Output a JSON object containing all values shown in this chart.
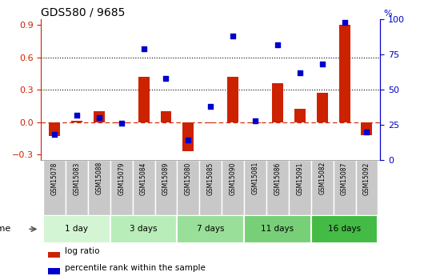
{
  "title": "GDS580 / 9685",
  "samples": [
    "GSM15078",
    "GSM15083",
    "GSM15088",
    "GSM15079",
    "GSM15084",
    "GSM15089",
    "GSM15080",
    "GSM15085",
    "GSM15090",
    "GSM15081",
    "GSM15086",
    "GSM15091",
    "GSM15082",
    "GSM15087",
    "GSM15092"
  ],
  "log_ratio": [
    -0.13,
    0.01,
    0.1,
    -0.01,
    0.42,
    0.1,
    -0.27,
    -0.01,
    0.42,
    -0.01,
    0.36,
    0.12,
    0.27,
    0.9,
    -0.12
  ],
  "percentile_rank": [
    18,
    32,
    30,
    26,
    79,
    58,
    14,
    38,
    88,
    28,
    82,
    62,
    68,
    98,
    20
  ],
  "groups": [
    {
      "label": "1 day",
      "indices": [
        0,
        1,
        2
      ],
      "color": "#d4f5d4"
    },
    {
      "label": "3 days",
      "indices": [
        3,
        4,
        5
      ],
      "color": "#b8ecb8"
    },
    {
      "label": "7 days",
      "indices": [
        6,
        7,
        8
      ],
      "color": "#99df99"
    },
    {
      "label": "11 days",
      "indices": [
        9,
        10,
        11
      ],
      "color": "#77d077"
    },
    {
      "label": "16 days",
      "indices": [
        12,
        13,
        14
      ],
      "color": "#44bb44"
    }
  ],
  "bar_color": "#cc2200",
  "dot_color": "#0000cc",
  "ylim_left": [
    -0.35,
    0.95
  ],
  "ylim_right": [
    0,
    100
  ],
  "yticks_left": [
    -0.3,
    0.0,
    0.3,
    0.6,
    0.9
  ],
  "yticks_right": [
    0,
    25,
    50,
    75,
    100
  ],
  "dotted_lines": [
    0.3,
    0.6
  ],
  "bar_width": 0.5,
  "sample_box_color": "#c8c8c8",
  "sample_box_edge": "#ffffff"
}
